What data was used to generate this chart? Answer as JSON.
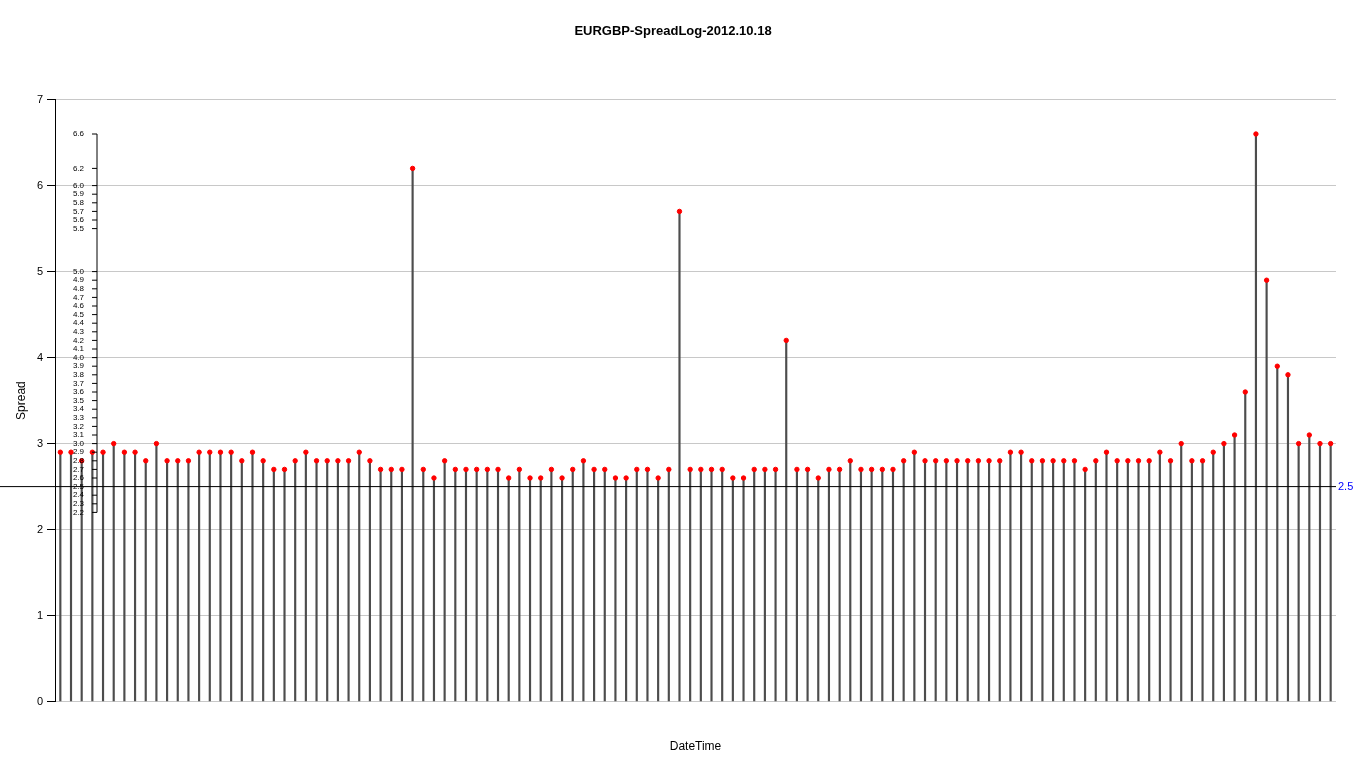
{
  "chart_data": {
    "type": "lollipop",
    "title": "EURGBP-SpreadLog-2012.10.18",
    "xlabel": "DateTime",
    "ylabel": "Spread",
    "categories": [
      null,
      null,
      null,
      null,
      null,
      null,
      null,
      null,
      null,
      null,
      null,
      null,
      null,
      null,
      null,
      null,
      null,
      null,
      null,
      null,
      null,
      null,
      null,
      null,
      null,
      null,
      null,
      null,
      null,
      null,
      null,
      null,
      null,
      null,
      null,
      null,
      null,
      null,
      null,
      null,
      null,
      null,
      null,
      null,
      null,
      null,
      null,
      null,
      null,
      null,
      null,
      null,
      null,
      null,
      null,
      null,
      null,
      null,
      null,
      null,
      null,
      null,
      null,
      null,
      null,
      null,
      null,
      null,
      null,
      null,
      null,
      null,
      null,
      null,
      null,
      null,
      null,
      null,
      null,
      null,
      null,
      null,
      null,
      null,
      null,
      null,
      null,
      null,
      null,
      null,
      null,
      null,
      null,
      null,
      null,
      null,
      null,
      null,
      null,
      null,
      null,
      null,
      null,
      null,
      null,
      null,
      null,
      null,
      null,
      null,
      null,
      null,
      null,
      null,
      null,
      null,
      null,
      null,
      null,
      null
    ],
    "series": [
      {
        "color": "#ff0000",
        "values": [
          2.9,
          2.9,
          2.8,
          2.9,
          2.9,
          3.0,
          2.9,
          2.9,
          2.8,
          3.0,
          2.8,
          2.8,
          2.8,
          2.9,
          2.9,
          2.9,
          2.9,
          2.8,
          2.9,
          2.8,
          2.7,
          2.7,
          2.8,
          2.9,
          2.8,
          2.8,
          2.8,
          2.8,
          2.9,
          2.8,
          2.7,
          2.7,
          2.7,
          6.2,
          2.7,
          2.6,
          2.8,
          2.7,
          2.7,
          2.7,
          2.7,
          2.7,
          2.6,
          2.7,
          2.6,
          2.6,
          2.7,
          2.6,
          2.7,
          2.8,
          2.7,
          2.7,
          2.6,
          2.6,
          2.7,
          2.7,
          2.6,
          2.7,
          5.7,
          2.7,
          2.7,
          2.7,
          2.7,
          2.6,
          2.6,
          2.7,
          2.7,
          2.7,
          4.2,
          2.7,
          2.7,
          2.6,
          2.7,
          2.7,
          2.8,
          2.7,
          2.7,
          2.7,
          2.7,
          2.8,
          2.9,
          2.8,
          2.8,
          2.8,
          2.8,
          2.8,
          2.8,
          2.8,
          2.8,
          2.9,
          2.9,
          2.8,
          2.8,
          2.8,
          2.8,
          2.8,
          2.7,
          2.8,
          2.9,
          2.8,
          2.8,
          2.8,
          2.8,
          2.9,
          2.8,
          3.0,
          2.8,
          2.8,
          2.9,
          3.0,
          3.1,
          3.6,
          6.6,
          4.9,
          3.9,
          3.8,
          3.0,
          3.1,
          3.0,
          3.0
        ]
      }
    ],
    "ylim": [
      0,
      7
    ],
    "yticks": [
      0,
      1,
      2,
      3,
      4,
      5,
      6,
      7
    ],
    "y2lim": [
      0,
      7
    ],
    "y2ticks": [
      2.2,
      2.3,
      2.4,
      2.5,
      2.6,
      2.7,
      2.8,
      2.9,
      {
        "value": 3,
        "label": "3.0"
      },
      3.1,
      3.2,
      3.3,
      3.4,
      3.5,
      3.6,
      3.7,
      3.8,
      3.9,
      {
        "value": 4,
        "label": "4.0"
      },
      4.1,
      4.2,
      4.3,
      4.4,
      4.5,
      4.6,
      4.7,
      4.8,
      4.9,
      {
        "value": 5,
        "label": "5.0"
      },
      5.5,
      5.6,
      5.7,
      5.8,
      5.9,
      {
        "value": 6,
        "label": "6.0"
      },
      6.2,
      6.6
    ],
    "ref_lines": [
      {
        "axis": "y",
        "value": 2.5,
        "label": "2.5"
      }
    ],
    "grid": "y",
    "marker": "circle",
    "legend": false
  }
}
